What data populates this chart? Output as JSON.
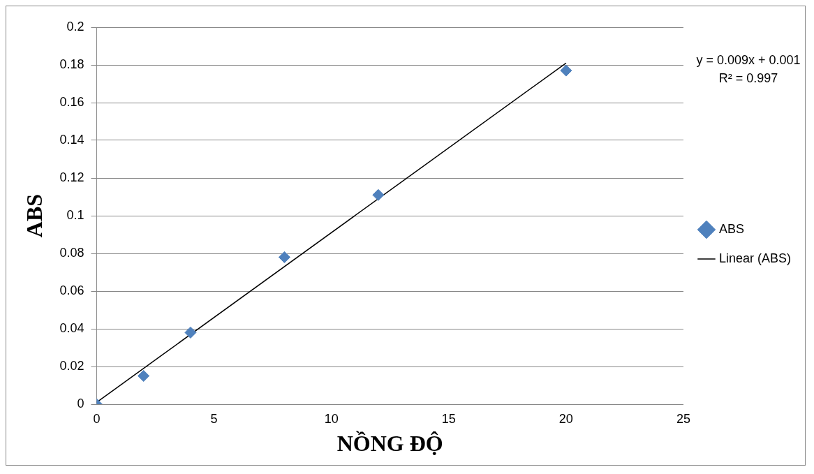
{
  "chart_data": {
    "type": "scatter",
    "xlabel": "NỒNG ĐỘ",
    "ylabel": "ABS",
    "x": [
      0,
      2,
      4,
      8,
      12,
      20
    ],
    "series": [
      {
        "name": "ABS",
        "color": "#4f81bd",
        "marker": "diamond",
        "values": [
          0,
          0.015,
          0.038,
          0.078,
          0.111,
          0.177
        ]
      },
      {
        "name": "Linear (ABS)",
        "type": "line",
        "color": "#000000",
        "marker": "none",
        "x": [
          0,
          20
        ],
        "values": [
          0.001,
          0.181
        ]
      }
    ],
    "xlim": [
      0,
      25
    ],
    "xticks": [
      0,
      5,
      10,
      15,
      20,
      25
    ],
    "ylim": [
      0,
      0.2
    ],
    "yticks": [
      0,
      0.02,
      0.04,
      0.06,
      0.08,
      0.1,
      0.12,
      0.14,
      0.16,
      0.18,
      0.2
    ],
    "grid": "y",
    "legend": "right",
    "annotations": [
      "y = 0.009x + 0.001",
      "R² = 0.997"
    ]
  }
}
